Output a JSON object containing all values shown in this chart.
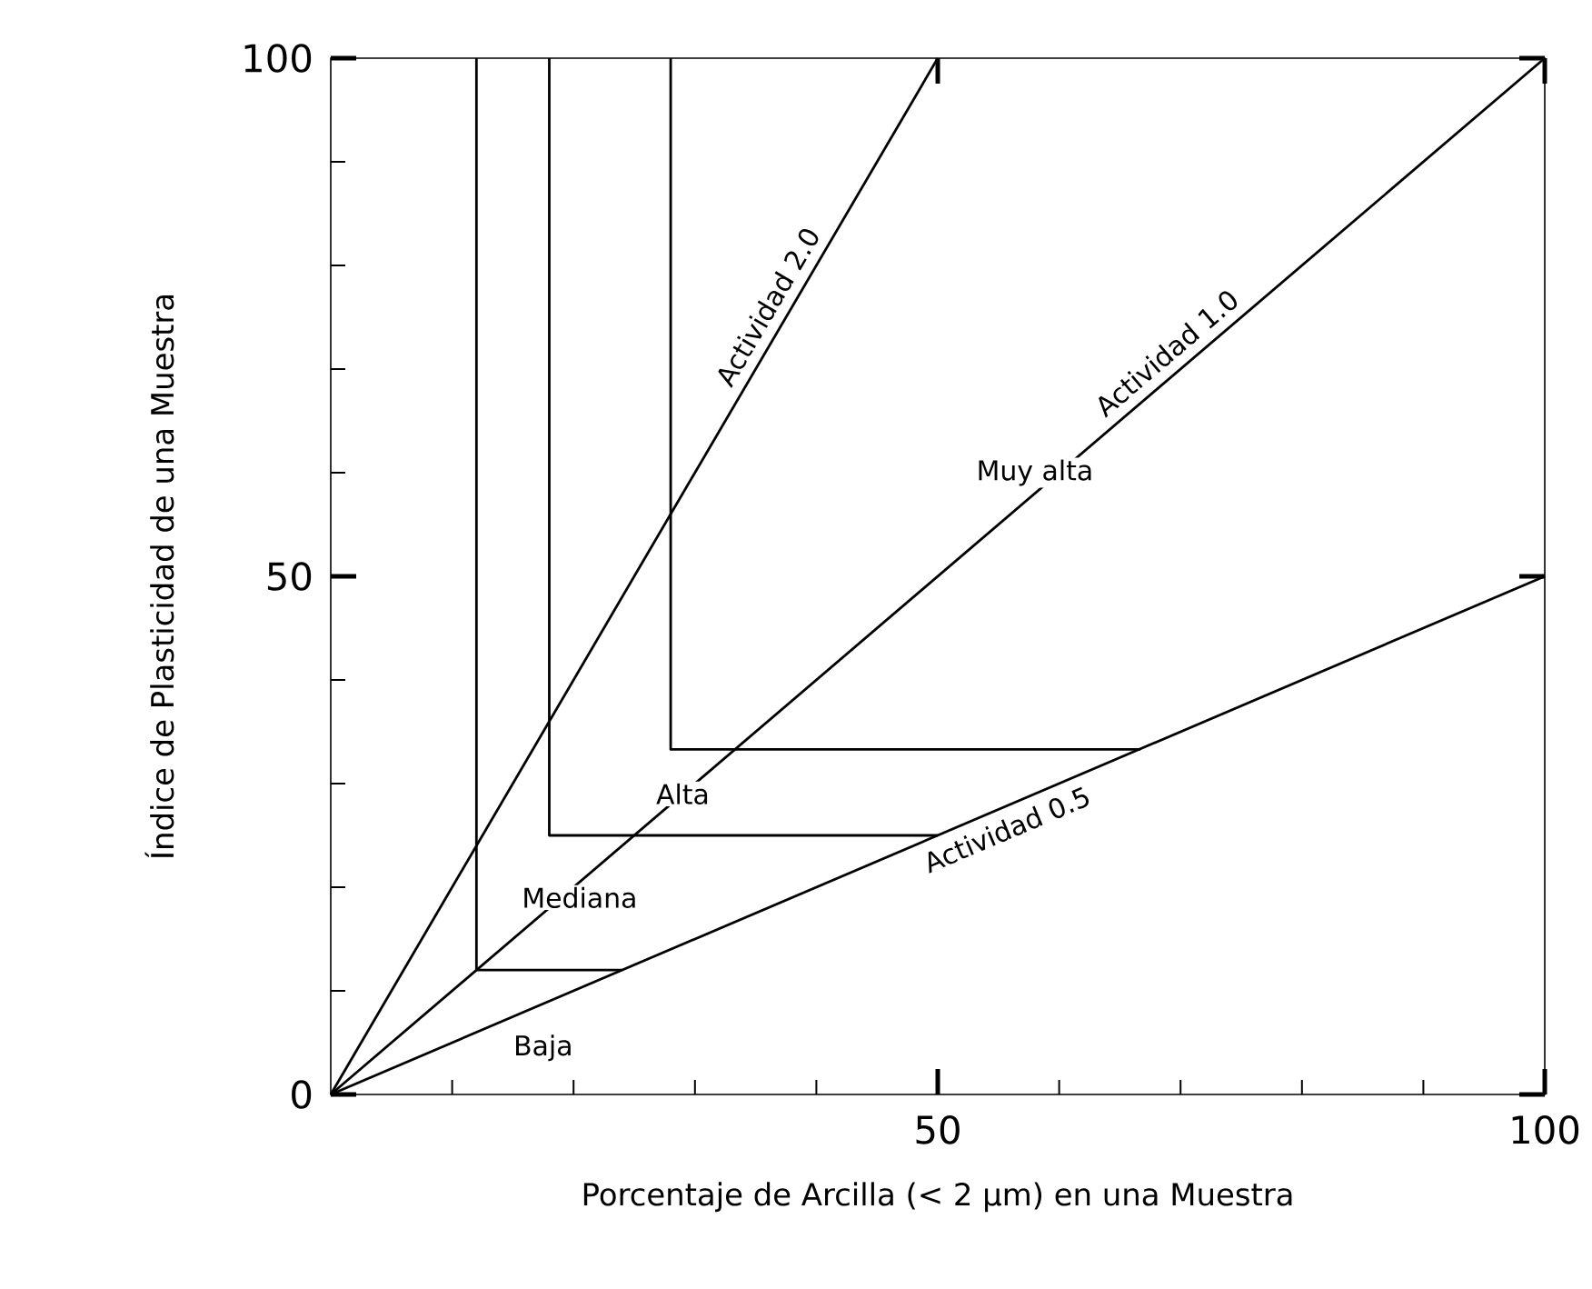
{
  "chart_data": {
    "type": "line",
    "xlabel": "Porcentaje de Arcilla (< 2 µm) en una Muestra",
    "ylabel": "Índice de Plasticidad de una Muestra",
    "xlim": [
      0,
      100
    ],
    "ylim": [
      0,
      100
    ],
    "xticks": [
      {
        "value": 10,
        "label": null
      },
      {
        "value": 20,
        "label": null
      },
      {
        "value": 30,
        "label": null
      },
      {
        "value": 40,
        "label": null
      },
      50,
      {
        "value": 60,
        "label": null
      },
      {
        "value": 70,
        "label": null
      },
      {
        "value": 80,
        "label": null
      },
      {
        "value": 90,
        "label": null
      },
      100
    ],
    "yticks": [
      0,
      {
        "value": 10,
        "label": null
      },
      {
        "value": 20,
        "label": null
      },
      {
        "value": 30,
        "label": null
      },
      {
        "value": 40,
        "label": null
      },
      50,
      {
        "value": 60,
        "label": null
      },
      {
        "value": 70,
        "label": null
      },
      {
        "value": 80,
        "label": null
      },
      {
        "value": 90,
        "label": null
      },
      100
    ],
    "series": [
      {
        "name": "Actividad 2.0",
        "color": "#000000",
        "x": [
          0,
          50
        ],
        "values": [
          0,
          100
        ]
      },
      {
        "name": "Actividad 1.0",
        "color": "#000000",
        "x": [
          0,
          100
        ],
        "values": [
          0,
          100
        ]
      },
      {
        "name": "Actividad 0.5",
        "color": "#000000",
        "x": [
          0,
          100
        ],
        "values": [
          0,
          50
        ]
      },
      {
        "color": "#000000",
        "x": [
          12,
          12,
          24
        ],
        "values": [
          100,
          12,
          12
        ]
      },
      {
        "color": "#000000",
        "x": [
          18,
          18,
          50
        ],
        "values": [
          100,
          25,
          25
        ]
      },
      {
        "color": "#000000",
        "x": [
          28,
          28,
          66.7
        ],
        "values": [
          100,
          33.3,
          33.3
        ]
      }
    ],
    "annotations": [
      "Muy alta",
      "Alta",
      "Mediana",
      "Baja"
    ]
  }
}
